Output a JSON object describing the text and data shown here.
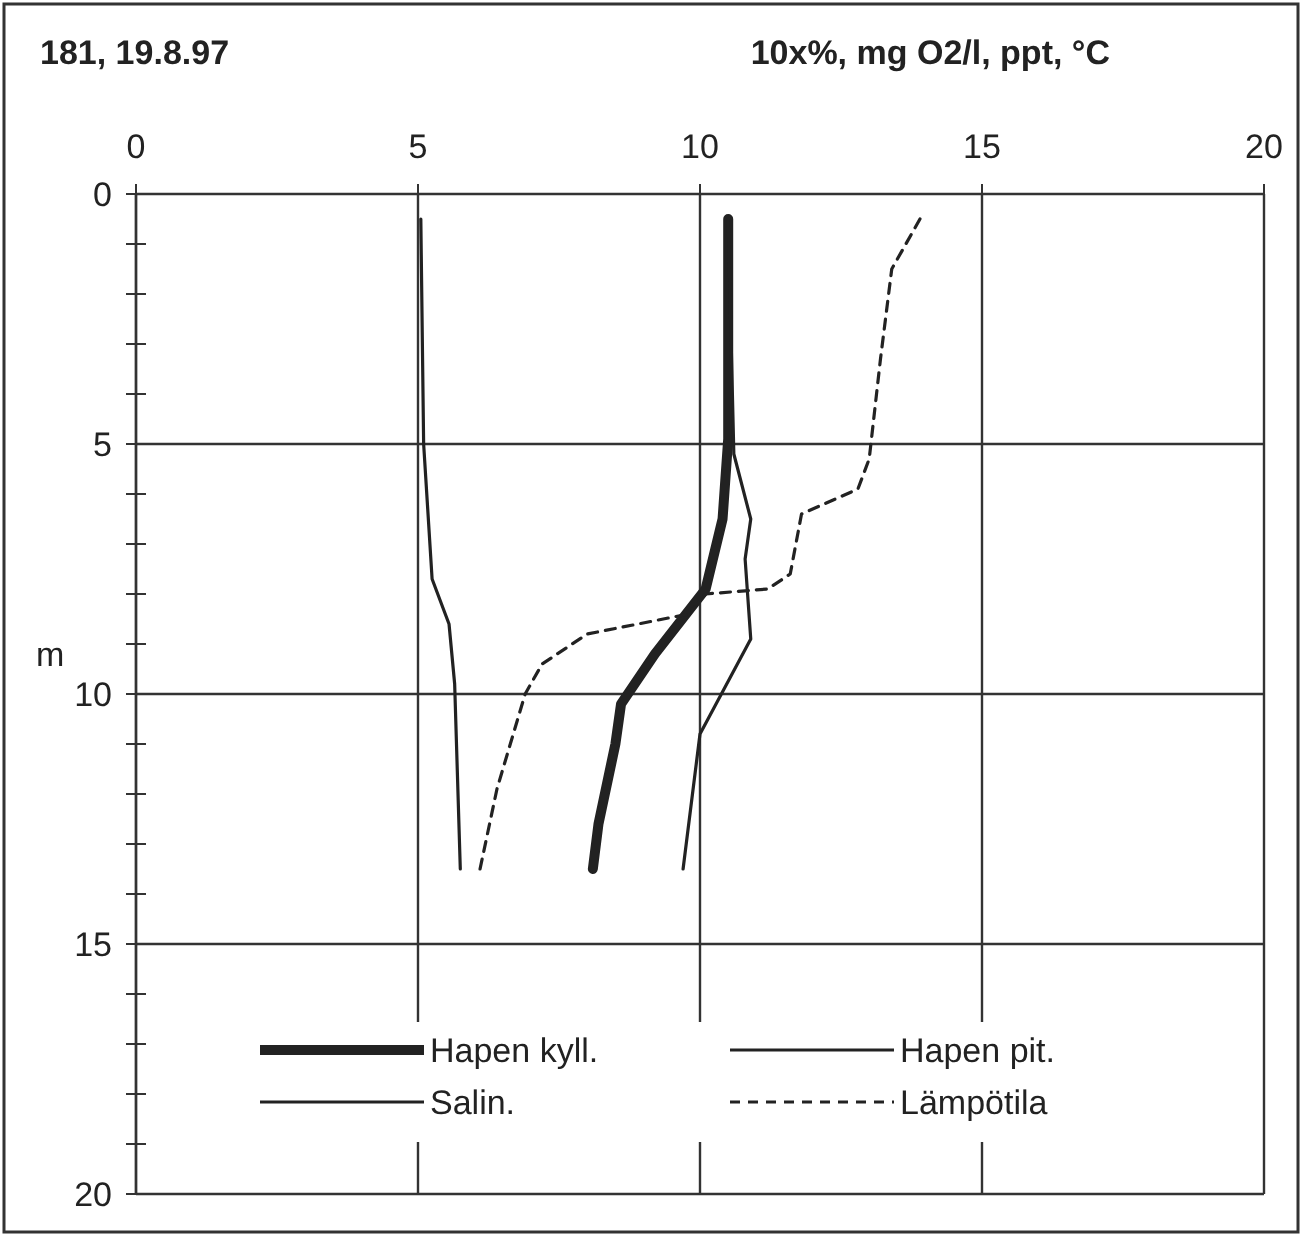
{
  "chart_data": {
    "type": "line",
    "title": "181, 19.8.97",
    "xlabel": "10x%, mg O2/l, ppt, °C",
    "ylabel": "m",
    "xlim": [
      0,
      20
    ],
    "xticks": [
      0,
      5,
      10,
      15,
      20
    ],
    "ylim": [
      20,
      0
    ],
    "yticks": [
      0,
      {
        "value": 1,
        "label": null
      },
      {
        "value": 2,
        "label": null
      },
      {
        "value": 3,
        "label": null
      },
      {
        "value": 4,
        "label": null
      },
      5,
      {
        "value": 6,
        "label": null
      },
      {
        "value": 7,
        "label": null
      },
      {
        "value": 8,
        "label": null
      },
      {
        "value": 9,
        "label": null
      },
      10,
      {
        "value": 11,
        "label": null
      },
      {
        "value": 12,
        "label": null
      },
      {
        "value": 13,
        "label": null
      },
      {
        "value": 14,
        "label": null
      },
      15,
      {
        "value": 16,
        "label": null
      },
      {
        "value": 17,
        "label": null
      },
      {
        "value": 18,
        "label": null
      },
      {
        "value": 19,
        "label": null
      },
      20
    ],
    "grid": true,
    "legend": "bottom",
    "marker": "none",
    "series": [
      {
        "name": "Hapen kyll.",
        "color": "#222222",
        "line_style": "solid",
        "x": [
          10.5,
          10.5,
          10.4,
          10.1,
          9.2,
          8.6,
          8.5,
          8.2,
          8.1
        ],
        "values": [
          0.5,
          4.9,
          6.5,
          7.9,
          9.2,
          10.2,
          11,
          12.6,
          13.5
        ]
      },
      {
        "name": "Hapen pit.",
        "color": "#222222",
        "line_style": "solid",
        "x": [
          10.5,
          10.6,
          10.9,
          10.8,
          10.9,
          10,
          9.7
        ],
        "values": [
          0.5,
          5.2,
          6.5,
          7.3,
          8.9,
          10.8,
          13.5
        ]
      },
      {
        "name": "Salin.",
        "color": "#222222",
        "line_style": "solid",
        "x": [
          5.05,
          5.1,
          5.25,
          5.55,
          5.65,
          5.75
        ],
        "values": [
          0.5,
          5,
          7.7,
          8.6,
          9.8,
          13.5
        ]
      },
      {
        "name": "Lämpötila",
        "color": "#222222",
        "line_style": "dashed",
        "x": [
          13.9,
          13.4,
          13.2,
          13,
          12.8,
          11.8,
          11.6,
          11.2,
          10.1,
          9.8,
          8,
          7.2,
          6.9,
          6.4,
          6.1
        ],
        "values": [
          0.5,
          1.5,
          3.3,
          5.3,
          5.9,
          6.4,
          7.6,
          7.9,
          8,
          8.4,
          8.8,
          9.4,
          10,
          11.9,
          13.5
        ]
      }
    ]
  }
}
